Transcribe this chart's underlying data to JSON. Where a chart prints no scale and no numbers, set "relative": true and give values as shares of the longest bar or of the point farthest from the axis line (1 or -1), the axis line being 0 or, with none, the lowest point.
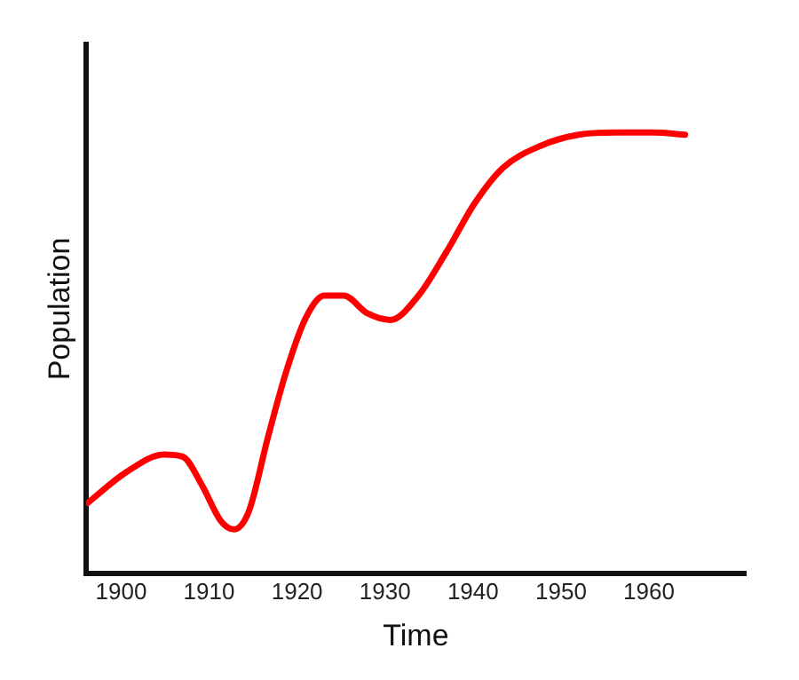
{
  "chart_data": {
    "type": "line",
    "xlabel": "Time",
    "ylabel": "Population",
    "relative": true,
    "grid": false,
    "legend": false,
    "marker": "none",
    "line_style": "solid",
    "x": [
      1896.2,
      1900.6,
      1904.9,
      1907,
      1909.2,
      1911.3,
      1912.8,
      1914.5,
      1916.7,
      1918.8,
      1921,
      1923.1,
      1925.3,
      1928,
      1930.6,
      1933.8,
      1937,
      1940.2,
      1943.4,
      1947.7,
      1952,
      1956.2,
      1960.5,
      1964.1
    ],
    "xlim": [
      1896,
      1971
    ],
    "xticks": [
      1900,
      1910,
      1920,
      1930,
      1940,
      1950,
      1960
    ],
    "series": [
      {
        "color": "#ff0000",
        "values": [
          0.16,
          0.23,
          0.27,
          0.265,
          0.2,
          0.12,
          0.1,
          0.14,
          0.31,
          0.46,
          0.58,
          0.63,
          0.63,
          0.59,
          0.575,
          0.63,
          0.73,
          0.84,
          0.92,
          0.97,
          0.995,
          1,
          1,
          0.995
        ]
      }
    ]
  }
}
